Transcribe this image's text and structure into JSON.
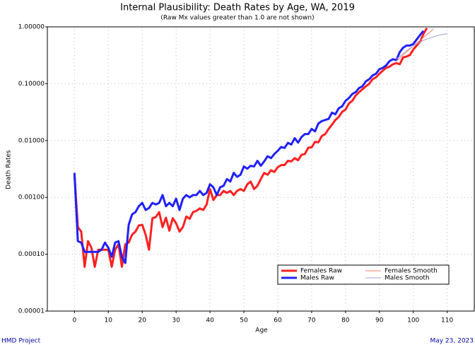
{
  "chart_data": {
    "type": "line",
    "title": "Internal Plausibility: Death Rates by Age, WA, 2019",
    "subtitle": "(Raw Mx values greater than 1.0 are not shown)",
    "x_label": "Age",
    "y_label": "Death Rates",
    "footer_left": "HMD Project",
    "footer_right": "May 23, 2023",
    "yscale": "log",
    "grid": true,
    "xlim": [
      -8,
      118
    ],
    "ylim": [
      1e-05,
      1.0
    ],
    "xticks": [
      0,
      10,
      20,
      30,
      40,
      50,
      60,
      70,
      80,
      90,
      100,
      110
    ],
    "yticks": [
      {
        "value": 1.0,
        "label": "1.00000"
      },
      {
        "value": 0.1,
        "label": "0.10000"
      },
      {
        "value": 0.01,
        "label": "0.01000"
      },
      {
        "value": 0.001,
        "label": "0.00100"
      },
      {
        "value": 0.0001,
        "label": "0.00010"
      },
      {
        "value": 1e-05,
        "label": "0.00001"
      }
    ],
    "series": [
      {
        "name": "Females Raw",
        "color": "#ff2020",
        "width": 3,
        "x": [
          0,
          1,
          2,
          3,
          4,
          5,
          6,
          7,
          8,
          9,
          10,
          11,
          12,
          13,
          14,
          15,
          16,
          17,
          18,
          19,
          20,
          21,
          22,
          23,
          24,
          25,
          26,
          27,
          28,
          29,
          30,
          31,
          32,
          33,
          34,
          35,
          36,
          37,
          38,
          39,
          40,
          41,
          42,
          43,
          44,
          45,
          46,
          47,
          48,
          49,
          50,
          51,
          52,
          53,
          54,
          55,
          56,
          57,
          58,
          59,
          60,
          61,
          62,
          63,
          64,
          65,
          66,
          67,
          68,
          69,
          70,
          71,
          72,
          73,
          74,
          75,
          76,
          77,
          78,
          79,
          80,
          81,
          82,
          83,
          84,
          85,
          86,
          87,
          88,
          89,
          90,
          91,
          92,
          93,
          94,
          95,
          96,
          97,
          98,
          99,
          100,
          101,
          102,
          103,
          104
        ],
        "values": [
          0.0025,
          0.0003,
          0.00025,
          6e-05,
          0.00017,
          0.00013,
          6e-05,
          0.00012,
          0.00012,
          0.00012,
          0.00012,
          6e-05,
          0.00012,
          0.00015,
          6e-05,
          0.00015,
          0.00016,
          0.00022,
          0.00025,
          0.00032,
          0.00033,
          0.00022,
          0.00012,
          0.00043,
          0.00045,
          0.00055,
          0.0003,
          0.00044,
          0.00026,
          0.00043,
          0.00035,
          0.00025,
          0.0003,
          0.00046,
          0.00042,
          0.00055,
          0.00058,
          0.00064,
          0.0006,
          0.00075,
          0.0014,
          0.0009,
          0.0011,
          0.0011,
          0.0013,
          0.0012,
          0.0013,
          0.0011,
          0.0013,
          0.0014,
          0.0013,
          0.0017,
          0.0019,
          0.0014,
          0.0016,
          0.0021,
          0.0027,
          0.0025,
          0.003,
          0.0028,
          0.0034,
          0.0037,
          0.0037,
          0.0044,
          0.0043,
          0.0049,
          0.0045,
          0.0056,
          0.0058,
          0.0075,
          0.0076,
          0.0095,
          0.0093,
          0.012,
          0.013,
          0.016,
          0.019,
          0.023,
          0.026,
          0.032,
          0.035,
          0.045,
          0.05,
          0.062,
          0.071,
          0.08,
          0.09,
          0.1,
          0.12,
          0.13,
          0.15,
          0.17,
          0.19,
          0.2,
          0.22,
          0.23,
          0.22,
          0.29,
          0.3,
          0.32,
          0.4,
          0.47,
          0.55,
          0.75,
          0.95
        ]
      },
      {
        "name": "Males Raw",
        "color": "#2020ff",
        "width": 3,
        "x": [
          0,
          1,
          2,
          3,
          4,
          5,
          6,
          7,
          8,
          9,
          10,
          11,
          12,
          13,
          14,
          15,
          16,
          17,
          18,
          19,
          20,
          21,
          22,
          23,
          24,
          25,
          26,
          27,
          28,
          29,
          30,
          31,
          32,
          33,
          34,
          35,
          36,
          37,
          38,
          39,
          40,
          41,
          42,
          43,
          44,
          45,
          46,
          47,
          48,
          49,
          50,
          51,
          52,
          53,
          54,
          55,
          56,
          57,
          58,
          59,
          60,
          61,
          62,
          63,
          64,
          65,
          66,
          67,
          68,
          69,
          70,
          71,
          72,
          73,
          74,
          75,
          76,
          77,
          78,
          79,
          80,
          81,
          82,
          83,
          84,
          85,
          86,
          87,
          88,
          89,
          90,
          91,
          92,
          93,
          94,
          95,
          96,
          97,
          98,
          99,
          100,
          101,
          102,
          103
        ],
        "values": [
          0.0027,
          0.00017,
          0.00016,
          0.00011,
          0.00011,
          0.00011,
          0.00011,
          0.00011,
          0.00012,
          0.00016,
          0.00013,
          9e-05,
          0.00016,
          0.00017,
          9e-05,
          7e-05,
          0.00033,
          0.0005,
          0.00055,
          0.0007,
          0.0008,
          0.0006,
          0.00065,
          0.0008,
          0.00075,
          0.0008,
          0.0011,
          0.0007,
          0.0008,
          0.0007,
          0.00095,
          0.0006,
          0.00095,
          0.0011,
          0.001,
          0.0011,
          0.0011,
          0.0013,
          0.0011,
          0.0012,
          0.0017,
          0.0015,
          0.0011,
          0.0015,
          0.0016,
          0.0021,
          0.0019,
          0.0027,
          0.0023,
          0.0025,
          0.0035,
          0.0032,
          0.0036,
          0.0035,
          0.0044,
          0.0036,
          0.0043,
          0.0053,
          0.0049,
          0.0058,
          0.0066,
          0.0077,
          0.0074,
          0.0091,
          0.0085,
          0.011,
          0.0092,
          0.0115,
          0.013,
          0.013,
          0.016,
          0.0145,
          0.02,
          0.022,
          0.023,
          0.024,
          0.031,
          0.029,
          0.037,
          0.04,
          0.05,
          0.056,
          0.066,
          0.071,
          0.084,
          0.09,
          0.11,
          0.12,
          0.14,
          0.15,
          0.18,
          0.19,
          0.21,
          0.25,
          0.27,
          0.26,
          0.36,
          0.43,
          0.47,
          0.47,
          0.5,
          0.6,
          0.72,
          0.85
        ]
      },
      {
        "name": "Females Smooth",
        "color": "#ff8060",
        "width": 1,
        "x": [
          95,
          96,
          97,
          98,
          99,
          100,
          101,
          102,
          103,
          104,
          105,
          106
        ],
        "values": [
          0.25,
          0.28,
          0.32,
          0.36,
          0.41,
          0.46,
          0.52,
          0.58,
          0.65,
          0.73,
          0.82,
          0.92
        ]
      },
      {
        "name": "Males Smooth",
        "color": "#a0a0e0",
        "width": 1,
        "x": [
          95,
          96,
          97,
          98,
          99,
          100,
          101,
          102,
          103,
          104,
          105,
          106,
          107,
          108,
          109,
          110
        ],
        "values": [
          0.27,
          0.3,
          0.34,
          0.38,
          0.42,
          0.46,
          0.5,
          0.54,
          0.58,
          0.61,
          0.64,
          0.67,
          0.7,
          0.72,
          0.74,
          0.76
        ]
      }
    ]
  }
}
